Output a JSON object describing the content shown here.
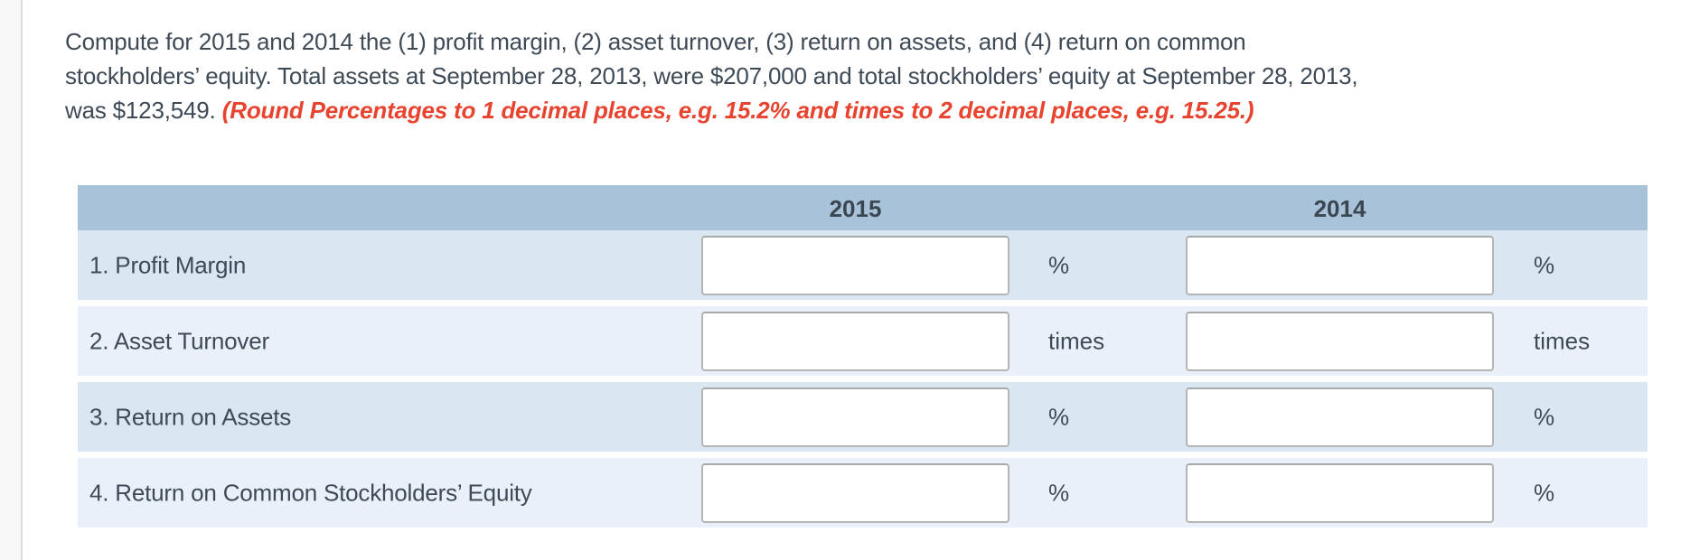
{
  "question": {
    "lines": [
      "Compute for 2015 and 2014 the (1) profit margin, (2) asset turnover, (3) return on assets, and (4) return on common",
      "stockholders’ equity. Total assets at September 28, 2013, were $207,000 and total stockholders’ equity at September 28, 2013,",
      "was $123,549."
    ],
    "note": "(Round Percentages to 1 decimal places, e.g. 15.2% and times to 2 decimal places, e.g. 15.25.)"
  },
  "table": {
    "column_headers": [
      "2015",
      "2014"
    ],
    "rows": [
      {
        "label": "1. Profit Margin",
        "unit": "%",
        "value_2015": "",
        "value_2014": ""
      },
      {
        "label": "2. Asset Turnover",
        "unit": "times",
        "value_2015": "",
        "value_2014": ""
      },
      {
        "label": "3. Return on Assets",
        "unit": "%",
        "value_2015": "",
        "value_2014": ""
      },
      {
        "label": "4. Return on Common Stockholders’ Equity",
        "unit": "%",
        "value_2015": "",
        "value_2014": ""
      }
    ]
  },
  "colors": {
    "header_bg": "#a8c2d9",
    "row_odd_bg": "#dbe6f3",
    "row_even_bg": "#eaf0fa",
    "text": "#3e4a56",
    "note_red": "#e8432e",
    "input_border": "#b5b5b5",
    "left_rail_bg": "#f8f8f8"
  }
}
